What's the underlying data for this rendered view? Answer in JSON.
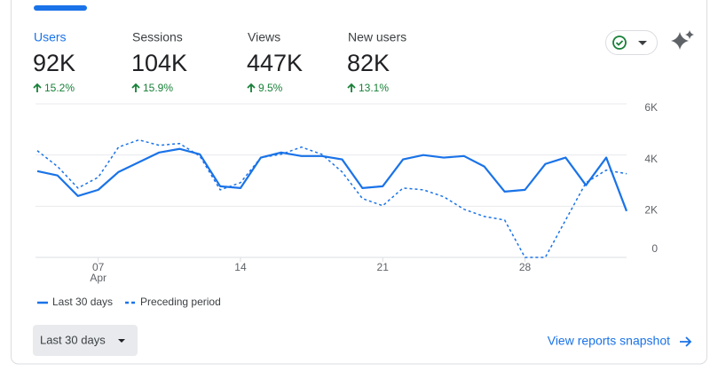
{
  "metrics": [
    {
      "label": "Users",
      "value": "92K",
      "change": "15.2%"
    },
    {
      "label": "Sessions",
      "value": "104K",
      "change": "15.9%"
    },
    {
      "label": "Views",
      "value": "447K",
      "change": "9.5%"
    },
    {
      "label": "New users",
      "value": "82K",
      "change": "13.1%"
    }
  ],
  "chart_data": {
    "type": "line",
    "categories": [
      null,
      null,
      null,
      "07",
      null,
      null,
      null,
      null,
      null,
      null,
      "14",
      null,
      null,
      null,
      null,
      null,
      null,
      "21",
      null,
      null,
      null,
      null,
      null,
      null,
      "28",
      null,
      null,
      null,
      null,
      null
    ],
    "x_sublabel": "Apr",
    "series": [
      {
        "name": "Last 30 days",
        "color": "#1a73e8",
        "style": "solid",
        "values": [
          3370,
          3200,
          2400,
          2640,
          3340,
          3720,
          4100,
          4240,
          4030,
          2780,
          2710,
          3900,
          4100,
          3960,
          3960,
          3830,
          2710,
          2780,
          3830,
          4000,
          3900,
          3960,
          3550,
          2570,
          2640,
          3650,
          3900,
          2820,
          3900,
          1810
        ]
      },
      {
        "name": "Preceding period",
        "color": "#1a73e8",
        "style": "dashed",
        "values": [
          4170,
          3550,
          2710,
          3130,
          4310,
          4590,
          4380,
          4450,
          3960,
          2640,
          2920,
          3900,
          4030,
          4310,
          4030,
          3340,
          2300,
          2020,
          2710,
          2640,
          2370,
          1880,
          1600,
          1460,
          0,
          0,
          1460,
          2920,
          3410,
          3270
        ]
      }
    ],
    "ylim": [
      0,
      6000
    ],
    "yticks": [
      0,
      {
        "value": 2000,
        "label": "2K"
      },
      {
        "value": 4000,
        "label": "4K"
      },
      {
        "value": 6000,
        "label": "6K"
      }
    ],
    "grid": true
  },
  "date_range": "Last 30 days",
  "link": "View reports snapshot"
}
